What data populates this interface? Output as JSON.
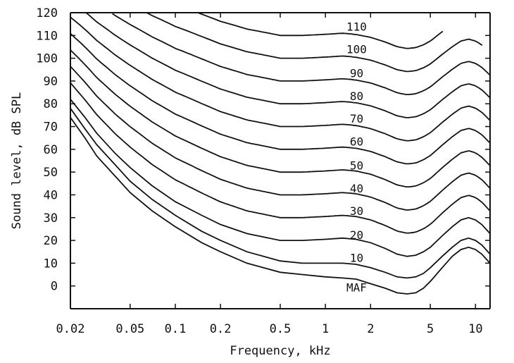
{
  "chart_data": {
    "type": "line",
    "title": "",
    "xlabel": "Frequency, kHz",
    "ylabel": "Sound level, dB SPL",
    "xscale": "log",
    "xlim": [
      0.02,
      12.5
    ],
    "ylim": [
      -10,
      120
    ],
    "grid": false,
    "line_color": "#111111",
    "x_ticks": [
      {
        "value": 0.02,
        "label": "0.02"
      },
      {
        "value": 0.05,
        "label": "0.05"
      },
      {
        "value": 0.1,
        "label": "0.1"
      },
      {
        "value": 0.2,
        "label": "0.2"
      },
      {
        "value": 0.5,
        "label": "0.5"
      },
      {
        "value": 1,
        "label": "1"
      },
      {
        "value": 2,
        "label": "2"
      },
      {
        "value": 5,
        "label": "5"
      },
      {
        "value": 10,
        "label": "10"
      }
    ],
    "y_ticks": [
      {
        "value": 120,
        "label": "120"
      },
      {
        "value": 110,
        "label": "110"
      },
      {
        "value": 100,
        "label": "100"
      },
      {
        "value": 90,
        "label": "90"
      },
      {
        "value": 80,
        "label": "80"
      },
      {
        "value": 70,
        "label": "70"
      },
      {
        "value": 60,
        "label": "60"
      },
      {
        "value": 50,
        "label": "50"
      },
      {
        "value": 40,
        "label": "40"
      },
      {
        "value": 30,
        "label": "30"
      },
      {
        "value": 20,
        "label": "20"
      },
      {
        "value": 10,
        "label": "10"
      },
      {
        "value": 0,
        "label": "0"
      }
    ],
    "series": [
      {
        "name": "MAF",
        "label_at": [
          1.3,
          -0.5
        ],
        "x": [
          0.02,
          0.025,
          0.03,
          0.04,
          0.05,
          0.07,
          0.1,
          0.15,
          0.2,
          0.3,
          0.5,
          0.7,
          1,
          1.3,
          1.6,
          2,
          2.5,
          3,
          3.5,
          4,
          4.5,
          5,
          6,
          7,
          8,
          9,
          10,
          11,
          12.5
        ],
        "y": [
          74,
          65,
          57,
          48,
          41,
          33,
          26,
          19,
          15,
          10,
          6,
          5,
          4,
          3.5,
          3,
          1,
          -1,
          -3,
          -3.5,
          -3,
          -1,
          2,
          8,
          13,
          16,
          17,
          16,
          14,
          10
        ]
      },
      {
        "name": "10",
        "label_at": [
          1.3,
          12.5
        ],
        "x": [
          0.02,
          0.025,
          0.03,
          0.04,
          0.05,
          0.07,
          0.1,
          0.15,
          0.2,
          0.3,
          0.5,
          0.7,
          1,
          1.3,
          1.6,
          2,
          2.5,
          3,
          3.5,
          4,
          4.5,
          5,
          6,
          7,
          8,
          9,
          10,
          11,
          12.5
        ],
        "y": [
          78,
          69,
          62,
          53,
          46,
          38,
          31,
          24,
          20,
          15,
          11,
          10,
          10,
          10,
          9.5,
          8,
          6,
          4,
          3.5,
          4,
          5.5,
          8,
          13,
          17,
          20,
          21,
          20,
          18,
          14
        ]
      },
      {
        "name": "20",
        "label_at": [
          1.3,
          22.5
        ],
        "x": [
          0.02,
          0.025,
          0.03,
          0.04,
          0.05,
          0.07,
          0.1,
          0.15,
          0.2,
          0.3,
          0.5,
          0.7,
          1,
          1.3,
          1.6,
          2,
          2.5,
          3,
          3.5,
          4,
          4.5,
          5,
          6,
          7,
          8,
          9,
          10,
          11,
          12.5
        ],
        "y": [
          82,
          74,
          67,
          58,
          52,
          44,
          37,
          31,
          27,
          23,
          20,
          20,
          20.5,
          21,
          20.5,
          19,
          16.5,
          14,
          13,
          13.5,
          15,
          17,
          22,
          26,
          29,
          30,
          29,
          27,
          23
        ]
      },
      {
        "name": "30",
        "label_at": [
          1.3,
          33
        ]
      },
      {
        "name": "40",
        "label_at": [
          1.3,
          43
        ]
      },
      {
        "name": "50",
        "label_at": [
          1.3,
          53
        ]
      },
      {
        "name": "60",
        "label_at": [
          1.3,
          63.5
        ]
      },
      {
        "name": "70",
        "label_at": [
          1.3,
          73.5
        ]
      },
      {
        "name": "80",
        "label_at": [
          1.3,
          83.5
        ]
      },
      {
        "name": "90",
        "label_at": [
          1.3,
          93.5
        ]
      },
      {
        "name": "100",
        "label_at": [
          1.3,
          104
        ]
      },
      {
        "name": "110",
        "label_at": [
          1.3,
          114
        ]
      }
    ]
  }
}
